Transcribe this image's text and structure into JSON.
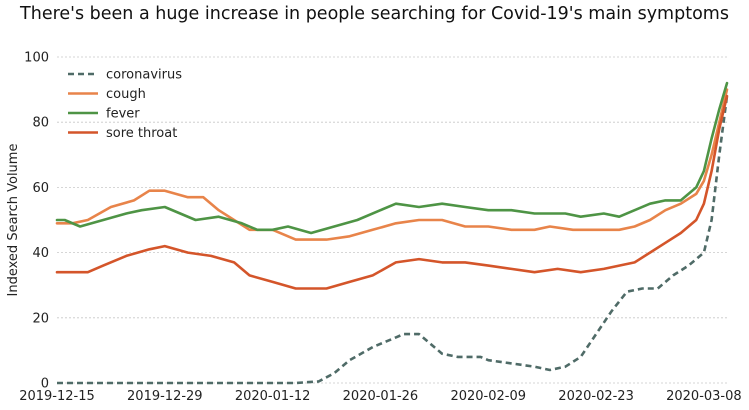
{
  "chart_data": {
    "type": "line",
    "title": "There's been a huge increase in people searching for Covid-19's main symptoms",
    "xlabel": "",
    "ylabel": "Indexed Search Volume",
    "ylim": [
      0,
      100
    ],
    "xlim": [
      "2019-12-15",
      "2020-03-11"
    ],
    "x_ticks": [
      "2019-12-15",
      "2019-12-29",
      "2020-01-12",
      "2020-01-26",
      "2020-02-09",
      "2020-02-23",
      "2020-03-08"
    ],
    "y_ticks": [
      0,
      20,
      40,
      60,
      80,
      100
    ],
    "grid": "horizontal",
    "legend_position": "upper-left",
    "series": [
      {
        "name": "coronavirus",
        "color": "#4f6b67",
        "style": "dashed",
        "points": [
          [
            "2019-12-15",
            0
          ],
          [
            "2020-01-15",
            0
          ],
          [
            "2020-01-18",
            0.5
          ],
          [
            "2020-01-20",
            3
          ],
          [
            "2020-01-22",
            7
          ],
          [
            "2020-01-25",
            11
          ],
          [
            "2020-01-28",
            14
          ],
          [
            "2020-01-29",
            15
          ],
          [
            "2020-01-31",
            15
          ],
          [
            "2020-02-01",
            13
          ],
          [
            "2020-02-03",
            9
          ],
          [
            "2020-02-05",
            8
          ],
          [
            "2020-02-08",
            8
          ],
          [
            "2020-02-09",
            7
          ],
          [
            "2020-02-12",
            6
          ],
          [
            "2020-02-15",
            5
          ],
          [
            "2020-02-17",
            4
          ],
          [
            "2020-02-19",
            5
          ],
          [
            "2020-02-21",
            8
          ],
          [
            "2020-02-23",
            15
          ],
          [
            "2020-02-25",
            22
          ],
          [
            "2020-02-27",
            28
          ],
          [
            "2020-02-29",
            29
          ],
          [
            "2020-03-02",
            29
          ],
          [
            "2020-03-04",
            33
          ],
          [
            "2020-03-06",
            36
          ],
          [
            "2020-03-08",
            40
          ],
          [
            "2020-03-09",
            50
          ],
          [
            "2020-03-10",
            70
          ],
          [
            "2020-03-11",
            88
          ]
        ]
      },
      {
        "name": "cough",
        "color": "#e8844a",
        "style": "solid",
        "points": [
          [
            "2019-12-15",
            49
          ],
          [
            "2019-12-17",
            49
          ],
          [
            "2019-12-19",
            50
          ],
          [
            "2019-12-22",
            54
          ],
          [
            "2019-12-25",
            56
          ],
          [
            "2019-12-27",
            59
          ],
          [
            "2019-12-29",
            59
          ],
          [
            "2020-01-01",
            57
          ],
          [
            "2020-01-03",
            57
          ],
          [
            "2020-01-05",
            53
          ],
          [
            "2020-01-07",
            50
          ],
          [
            "2020-01-09",
            47
          ],
          [
            "2020-01-12",
            47
          ],
          [
            "2020-01-15",
            44
          ],
          [
            "2020-01-19",
            44
          ],
          [
            "2020-01-22",
            45
          ],
          [
            "2020-01-25",
            47
          ],
          [
            "2020-01-28",
            49
          ],
          [
            "2020-01-31",
            50
          ],
          [
            "2020-02-03",
            50
          ],
          [
            "2020-02-06",
            48
          ],
          [
            "2020-02-09",
            48
          ],
          [
            "2020-02-12",
            47
          ],
          [
            "2020-02-15",
            47
          ],
          [
            "2020-02-17",
            48
          ],
          [
            "2020-02-20",
            47
          ],
          [
            "2020-02-23",
            47
          ],
          [
            "2020-02-26",
            47
          ],
          [
            "2020-02-28",
            48
          ],
          [
            "2020-03-01",
            50
          ],
          [
            "2020-03-03",
            53
          ],
          [
            "2020-03-05",
            55
          ],
          [
            "2020-03-07",
            58
          ],
          [
            "2020-03-08",
            62
          ],
          [
            "2020-03-09",
            70
          ],
          [
            "2020-03-10",
            80
          ],
          [
            "2020-03-11",
            90
          ]
        ]
      },
      {
        "name": "fever",
        "color": "#4e9445",
        "style": "solid",
        "points": [
          [
            "2019-12-15",
            50
          ],
          [
            "2019-12-16",
            50
          ],
          [
            "2019-12-18",
            48
          ],
          [
            "2019-12-21",
            50
          ],
          [
            "2019-12-24",
            52
          ],
          [
            "2019-12-26",
            53
          ],
          [
            "2019-12-29",
            54
          ],
          [
            "2019-12-31",
            52
          ],
          [
            "2020-01-02",
            50
          ],
          [
            "2020-01-05",
            51
          ],
          [
            "2020-01-08",
            49
          ],
          [
            "2020-01-10",
            47
          ],
          [
            "2020-01-12",
            47
          ],
          [
            "2020-01-14",
            48
          ],
          [
            "2020-01-17",
            46
          ],
          [
            "2020-01-20",
            48
          ],
          [
            "2020-01-23",
            50
          ],
          [
            "2020-01-26",
            53
          ],
          [
            "2020-01-28",
            55
          ],
          [
            "2020-01-31",
            54
          ],
          [
            "2020-02-03",
            55
          ],
          [
            "2020-02-06",
            54
          ],
          [
            "2020-02-09",
            53
          ],
          [
            "2020-02-12",
            53
          ],
          [
            "2020-02-15",
            52
          ],
          [
            "2020-02-19",
            52
          ],
          [
            "2020-02-21",
            51
          ],
          [
            "2020-02-24",
            52
          ],
          [
            "2020-02-26",
            51
          ],
          [
            "2020-02-28",
            53
          ],
          [
            "2020-03-01",
            55
          ],
          [
            "2020-03-03",
            56
          ],
          [
            "2020-03-05",
            56
          ],
          [
            "2020-03-07",
            60
          ],
          [
            "2020-03-08",
            65
          ],
          [
            "2020-03-09",
            75
          ],
          [
            "2020-03-10",
            84
          ],
          [
            "2020-03-11",
            92
          ]
        ]
      },
      {
        "name": "sore throat",
        "color": "#d4552a",
        "style": "solid",
        "points": [
          [
            "2019-12-15",
            34
          ],
          [
            "2019-12-19",
            34
          ],
          [
            "2019-12-21",
            36
          ],
          [
            "2019-12-24",
            39
          ],
          [
            "2019-12-27",
            41
          ],
          [
            "2019-12-29",
            42
          ],
          [
            "2020-01-01",
            40
          ],
          [
            "2020-01-04",
            39
          ],
          [
            "2020-01-07",
            37
          ],
          [
            "2020-01-09",
            33
          ],
          [
            "2020-01-12",
            31
          ],
          [
            "2020-01-15",
            29
          ],
          [
            "2020-01-19",
            29
          ],
          [
            "2020-01-22",
            31
          ],
          [
            "2020-01-25",
            33
          ],
          [
            "2020-01-28",
            37
          ],
          [
            "2020-01-31",
            38
          ],
          [
            "2020-02-03",
            37
          ],
          [
            "2020-02-06",
            37
          ],
          [
            "2020-02-09",
            36
          ],
          [
            "2020-02-12",
            35
          ],
          [
            "2020-02-15",
            34
          ],
          [
            "2020-02-18",
            35
          ],
          [
            "2020-02-21",
            34
          ],
          [
            "2020-02-24",
            35
          ],
          [
            "2020-02-26",
            36
          ],
          [
            "2020-02-28",
            37
          ],
          [
            "2020-03-01",
            40
          ],
          [
            "2020-03-03",
            43
          ],
          [
            "2020-03-05",
            46
          ],
          [
            "2020-03-07",
            50
          ],
          [
            "2020-03-08",
            55
          ],
          [
            "2020-03-09",
            65
          ],
          [
            "2020-03-10",
            78
          ],
          [
            "2020-03-11",
            88
          ]
        ]
      }
    ]
  }
}
